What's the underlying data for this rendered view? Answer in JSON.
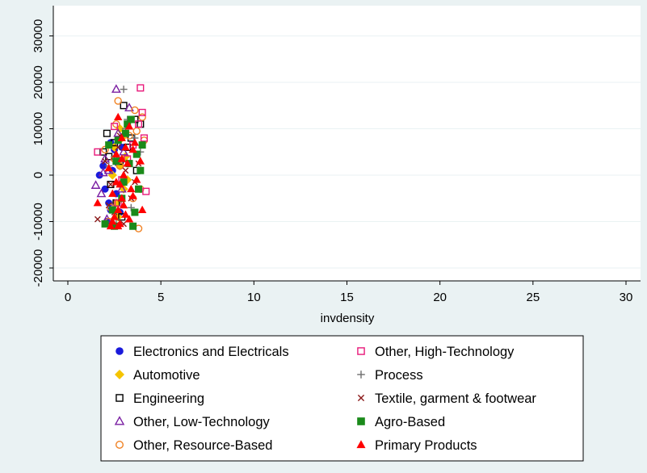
{
  "chart_data": {
    "type": "scatter",
    "title": "",
    "xlabel": "invdensity",
    "ylabel": "",
    "xlim": [
      -1,
      30.5
    ],
    "ylim": [
      -21500,
      33500
    ],
    "x_ticks": [
      0,
      5,
      10,
      15,
      20,
      25,
      30
    ],
    "y_ticks": [
      -20000,
      -10000,
      0,
      10000,
      20000,
      30000
    ],
    "x_tick_labels": [
      "0",
      "5",
      "10",
      "15",
      "20",
      "25",
      "30"
    ],
    "y_tick_labels": [
      "-20000",
      "-10000",
      "0",
      "10000",
      "20000",
      "30000"
    ],
    "grid": "horizontal",
    "legend_position": "bottom",
    "series": [
      {
        "name": "Electronics and Electricals",
        "marker": "circle-filled",
        "color": "#1a1adb",
        "points": [
          [
            1.7,
            0
          ],
          [
            2.3,
            7000
          ],
          [
            2.0,
            -3000
          ],
          [
            2.6,
            3000
          ],
          [
            2.2,
            -6000
          ],
          [
            2.5,
            5500
          ],
          [
            1.9,
            2000
          ],
          [
            2.8,
            -8000
          ],
          [
            2.4,
            1000
          ],
          [
            2.1,
            -10000
          ],
          [
            2.6,
            -4000
          ],
          [
            2.9,
            6000
          ],
          [
            2.3,
            -7500
          ],
          [
            2.7,
            2500
          ]
        ]
      },
      {
        "name": "Automotive",
        "marker": "diamond-filled",
        "color": "#f5c400",
        "points": [
          [
            2.5,
            6000
          ],
          [
            2.8,
            2000
          ],
          [
            3.0,
            -3000
          ],
          [
            2.6,
            -6000
          ],
          [
            2.9,
            8000
          ],
          [
            3.1,
            4000
          ],
          [
            2.7,
            -9000
          ],
          [
            2.4,
            0
          ],
          [
            3.2,
            -1000
          ],
          [
            2.8,
            10000
          ]
        ]
      },
      {
        "name": "Engineering",
        "marker": "square-hollow",
        "color": "#000000",
        "points": [
          [
            2.1,
            9000
          ],
          [
            3.0,
            15000
          ],
          [
            2.5,
            7000
          ],
          [
            1.9,
            5000
          ],
          [
            3.4,
            8000
          ],
          [
            2.8,
            3000
          ],
          [
            3.6,
            12000
          ],
          [
            2.3,
            -2000
          ],
          [
            3.9,
            11000
          ],
          [
            2.6,
            -6000
          ],
          [
            3.2,
            6000
          ],
          [
            2.9,
            -9000
          ],
          [
            3.7,
            1000
          ],
          [
            2.2,
            4000
          ]
        ]
      },
      {
        "name": "Other, Low-Technology",
        "marker": "triangle-hollow",
        "color": "#7a1fa2",
        "points": [
          [
            2.6,
            18500
          ],
          [
            1.5,
            -2200
          ],
          [
            1.8,
            -4000
          ],
          [
            2.2,
            1000
          ],
          [
            2.0,
            3500
          ],
          [
            2.4,
            -7000
          ],
          [
            3.3,
            14500
          ],
          [
            2.7,
            9000
          ],
          [
            2.1,
            -9500
          ],
          [
            2.9,
            -3000
          ],
          [
            1.9,
            500
          ],
          [
            3.0,
            5000
          ]
        ]
      },
      {
        "name": "Other, Resource-Based",
        "marker": "circle-hollow",
        "color": "#f08224",
        "points": [
          [
            2.7,
            16000
          ],
          [
            4.0,
            12500
          ],
          [
            3.6,
            14000
          ],
          [
            2.0,
            5500
          ],
          [
            2.6,
            11000
          ],
          [
            3.8,
            -11500
          ],
          [
            3.9,
            -3000
          ],
          [
            2.3,
            -7000
          ],
          [
            3.3,
            8500
          ],
          [
            2.8,
            2000
          ],
          [
            3.5,
            -5000
          ],
          [
            2.2,
            -10000
          ],
          [
            4.1,
            7500
          ],
          [
            3.0,
            -1500
          ],
          [
            2.5,
            3500
          ],
          [
            3.7,
            9500
          ]
        ]
      },
      {
        "name": "Other, High-Technology",
        "marker": "square-hollow",
        "color": "#e8197a",
        "points": [
          [
            3.9,
            18800
          ],
          [
            4.0,
            13500
          ],
          [
            1.6,
            5000
          ],
          [
            4.2,
            -3500
          ],
          [
            2.5,
            10500
          ],
          [
            3.5,
            6500
          ],
          [
            3.8,
            11000
          ],
          [
            2.9,
            -1000
          ],
          [
            4.1,
            8000
          ],
          [
            3.2,
            3500
          ],
          [
            2.7,
            -6000
          ]
        ]
      },
      {
        "name": "Process",
        "marker": "plus",
        "color": "#6e6e6e",
        "points": [
          [
            3.0,
            18500
          ],
          [
            3.2,
            12000
          ],
          [
            2.5,
            4000
          ],
          [
            3.6,
            8000
          ],
          [
            2.8,
            -2000
          ],
          [
            3.4,
            -7000
          ],
          [
            2.2,
            2000
          ],
          [
            3.9,
            5000
          ],
          [
            2.6,
            -9500
          ],
          [
            3.1,
            10000
          ]
        ]
      },
      {
        "name": "Textile, garment & footwear",
        "marker": "x",
        "color": "#8b1a1a",
        "points": [
          [
            1.6,
            -9500
          ],
          [
            2.3,
            -2000
          ],
          [
            3.1,
            1000
          ],
          [
            2.7,
            6000
          ],
          [
            3.4,
            -5000
          ],
          [
            2.0,
            3000
          ],
          [
            3.8,
            2500
          ],
          [
            2.5,
            -8000
          ],
          [
            3.0,
            -10500
          ],
          [
            2.8,
            8500
          ],
          [
            3.6,
            -1500
          ],
          [
            2.2,
            -6500
          ]
        ]
      },
      {
        "name": "Agro-Based",
        "marker": "square-filled",
        "color": "#1a8a1a",
        "points": [
          [
            2.2,
            6500
          ],
          [
            3.1,
            9000
          ],
          [
            4.0,
            6500
          ],
          [
            3.4,
            12000
          ],
          [
            2.6,
            3000
          ],
          [
            3.8,
            -3000
          ],
          [
            2.0,
            -10500
          ],
          [
            3.5,
            -11000
          ],
          [
            2.9,
            -5000
          ],
          [
            3.3,
            2500
          ],
          [
            2.4,
            -7500
          ],
          [
            3.7,
            4500
          ],
          [
            3.0,
            -1500
          ],
          [
            2.7,
            7500
          ],
          [
            3.6,
            -8000
          ],
          [
            2.5,
            -11000
          ],
          [
            3.2,
            11000
          ],
          [
            3.9,
            1000
          ]
        ]
      },
      {
        "name": "Primary Products",
        "marker": "triangle-filled",
        "color": "#ff0000",
        "points": [
          [
            2.7,
            12500
          ],
          [
            3.3,
            10500
          ],
          [
            3.9,
            3000
          ],
          [
            3.7,
            -1000
          ],
          [
            4.0,
            -7500
          ],
          [
            1.6,
            -6000
          ],
          [
            2.4,
            -4000
          ],
          [
            2.9,
            8000
          ],
          [
            3.5,
            5500
          ],
          [
            2.2,
            1500
          ],
          [
            3.1,
            -8500
          ],
          [
            2.8,
            -10500
          ],
          [
            3.4,
            -3000
          ],
          [
            2.6,
            4500
          ],
          [
            3.0,
            0
          ],
          [
            2.5,
            -9000
          ],
          [
            3.2,
            2500
          ],
          [
            2.8,
            -2000
          ],
          [
            3.6,
            7000
          ],
          [
            2.3,
            -11000
          ],
          [
            3.0,
            -6500
          ],
          [
            2.7,
            -7500
          ],
          [
            3.3,
            -9500
          ],
          [
            2.9,
            -5000
          ],
          [
            2.6,
            -1500
          ],
          [
            3.1,
            6000
          ],
          [
            2.4,
            -10000
          ],
          [
            3.5,
            -4500
          ],
          [
            2.9,
            3500
          ],
          [
            2.7,
            -11000
          ]
        ]
      }
    ]
  }
}
